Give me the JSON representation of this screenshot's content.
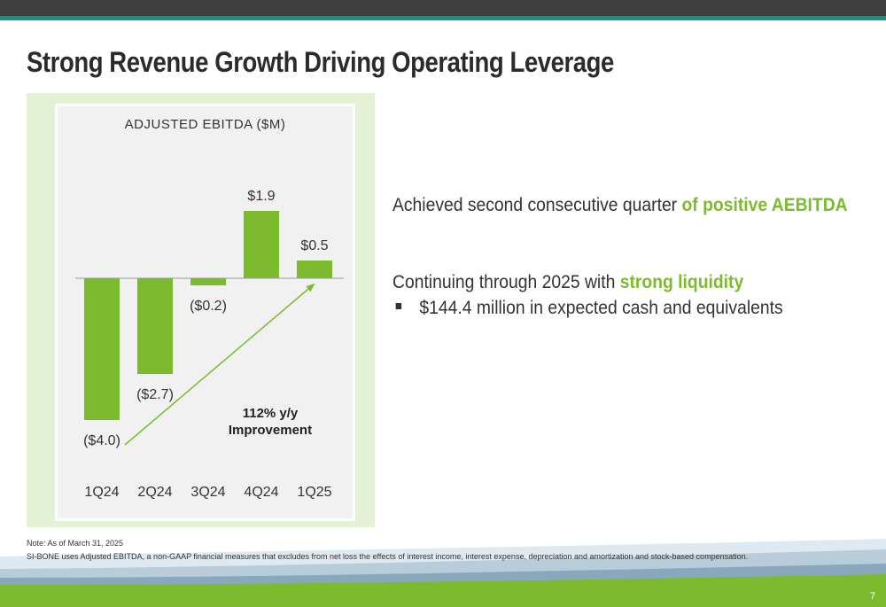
{
  "header": {
    "title": "Strong Revenue Growth Driving Operating Leverage"
  },
  "chart_data": {
    "type": "bar",
    "title": "ADJUSTED EBITDA ($M)",
    "categories": [
      "1Q24",
      "2Q24",
      "3Q24",
      "4Q24",
      "1Q25"
    ],
    "values": [
      -4.0,
      -2.7,
      -0.2,
      1.9,
      0.5
    ],
    "data_labels": [
      "($4.0)",
      "($2.7)",
      "($0.2)",
      "$1.9",
      "$0.5"
    ],
    "annotation": "112% y/y Improvement",
    "annotation_lines": [
      "112% y/y",
      "Improvement"
    ],
    "bar_color": "#7dbb2e",
    "grid": false,
    "legend": "none"
  },
  "bullets": {
    "point1_text": "Achieved second consecutive quarter ",
    "point1_highlight": "of positive AEBITDA",
    "point2_text": "Continuing through 2025 with ",
    "point2_highlight": "strong liquidity",
    "sub_point": "$144.4 million in expected cash and equivalents"
  },
  "notes": {
    "line1": "Note: As of March 31, 2025",
    "line2": "SI-BONE uses Adjusted EBITDA, a non-GAAP financial measures that excludes from net loss the effects of interest income, interest expense, depreciation and amortization and stock-based compensation."
  },
  "footer": {
    "page_number": "7"
  },
  "colors": {
    "accent_green": "#7dbb2e",
    "top_bar": "#3f3f3f",
    "top_line": "#2f8a7c"
  }
}
